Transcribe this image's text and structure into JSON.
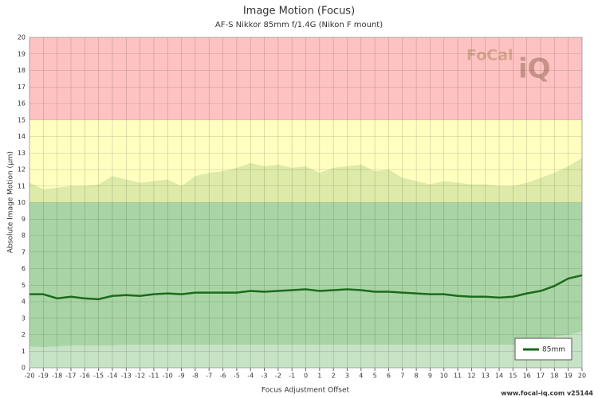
{
  "chart_data": {
    "type": "line",
    "title": "Image Motion (Focus)",
    "subtitle": "AF-S Nikkor 85mm f/1.4G (Nikon F mount)",
    "x_label": "Focus Adjustment Offset",
    "y_label": "Absolute Image Motion (µm)",
    "footer": "www.focal-iq.com  v25144",
    "logo": [
      "FoCal",
      "iQ"
    ],
    "x": [
      -20,
      -19,
      -18,
      -17,
      -16,
      -15,
      -14,
      -13,
      -12,
      -11,
      -10,
      -9,
      -8,
      -7,
      -6,
      -5,
      -4,
      -3,
      -2,
      -1,
      0,
      1,
      2,
      3,
      4,
      5,
      6,
      7,
      8,
      9,
      10,
      11,
      12,
      13,
      14,
      15,
      16,
      17,
      18,
      19,
      20
    ],
    "series": [
      {
        "name": "85mm",
        "color": "#1a6b1a",
        "values": [
          4.45,
          4.45,
          4.2,
          4.3,
          4.2,
          4.15,
          4.35,
          4.4,
          4.35,
          4.45,
          4.5,
          4.45,
          4.55,
          4.55,
          4.55,
          4.55,
          4.65,
          4.6,
          4.65,
          4.7,
          4.75,
          4.65,
          4.7,
          4.75,
          4.7,
          4.6,
          4.6,
          4.55,
          4.5,
          4.45,
          4.45,
          4.35,
          4.3,
          4.3,
          4.25,
          4.3,
          4.5,
          4.65,
          4.95,
          5.4,
          5.6
        ]
      }
    ],
    "band": {
      "color": "#4a8a3a",
      "upper": [
        11.2,
        10.8,
        10.9,
        11.0,
        11.0,
        11.1,
        11.6,
        11.4,
        11.2,
        11.3,
        11.4,
        11.0,
        11.6,
        11.8,
        11.9,
        12.1,
        12.4,
        12.2,
        12.3,
        12.1,
        12.2,
        11.8,
        12.1,
        12.2,
        12.3,
        11.9,
        12.0,
        11.5,
        11.3,
        11.1,
        11.3,
        11.2,
        11.1,
        11.1,
        11.0,
        11.0,
        11.2,
        11.5,
        11.8,
        12.2,
        12.7
      ],
      "lower": [
        1.3,
        1.25,
        1.3,
        1.35,
        1.35,
        1.35,
        1.35,
        1.4,
        1.4,
        1.4,
        1.4,
        1.4,
        1.4,
        1.4,
        1.4,
        1.4,
        1.4,
        1.4,
        1.4,
        1.4,
        1.4,
        1.4,
        1.4,
        1.4,
        1.4,
        1.4,
        1.4,
        1.4,
        1.4,
        1.4,
        1.4,
        1.4,
        1.4,
        1.4,
        1.4,
        1.4,
        1.5,
        1.7,
        1.9,
        2.0,
        2.2
      ]
    },
    "zones": [
      {
        "from": 0,
        "to": 10,
        "color": "#bfe6bf"
      },
      {
        "from": 10,
        "to": 15,
        "color": "#ffffc0"
      },
      {
        "from": 15,
        "to": 20,
        "color": "#ffc2c2"
      }
    ],
    "xlim": [
      -20,
      20
    ],
    "ylim": [
      0,
      20
    ],
    "xticks": [
      -20,
      -19,
      -18,
      -17,
      -16,
      -15,
      -14,
      -13,
      -12,
      -11,
      -10,
      -9,
      -8,
      -7,
      -6,
      -5,
      -4,
      -3,
      -2,
      -1,
      0,
      1,
      2,
      3,
      4,
      5,
      6,
      7,
      8,
      9,
      10,
      11,
      12,
      13,
      14,
      15,
      16,
      17,
      18,
      19,
      20
    ],
    "yticks": [
      0,
      1,
      2,
      3,
      4,
      5,
      6,
      7,
      8,
      9,
      10,
      11,
      12,
      13,
      14,
      15,
      16,
      17,
      18,
      19,
      20
    ],
    "grid": true,
    "legend": "lower right"
  }
}
